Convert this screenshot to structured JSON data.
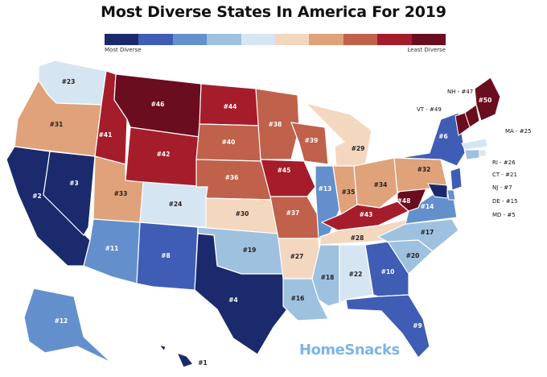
{
  "title": "Most Diverse States In America For 2019",
  "legend": {
    "most_label": "Most Diverse",
    "least_label": "Least Diverse",
    "colors": [
      "#1a2a6c",
      "#3f5db5",
      "#6390cc",
      "#9ec1e0",
      "#d6e5f2",
      "#f4d7bf",
      "#dfa27a",
      "#c0614b",
      "#a51d2b",
      "#6a0d1e"
    ]
  },
  "brand": "HomeSnacks",
  "states": [
    {
      "id": "WA",
      "rank": "#23",
      "color": "#d6e5f2"
    },
    {
      "id": "OR",
      "rank": "#31",
      "color": "#dfa27a"
    },
    {
      "id": "CA",
      "rank": "#2",
      "color": "#1a2a6c"
    },
    {
      "id": "NV",
      "rank": "#3",
      "color": "#1a2a6c"
    },
    {
      "id": "ID",
      "rank": "#41",
      "color": "#a51d2b"
    },
    {
      "id": "MT",
      "rank": "#46",
      "color": "#6a0d1e"
    },
    {
      "id": "WY",
      "rank": "#42",
      "color": "#a51d2b"
    },
    {
      "id": "UT",
      "rank": "#33",
      "color": "#dfa27a"
    },
    {
      "id": "AZ",
      "rank": "#11",
      "color": "#6390cc"
    },
    {
      "id": "CO",
      "rank": "#24",
      "color": "#d6e5f2"
    },
    {
      "id": "NM",
      "rank": "#8",
      "color": "#3f5db5"
    },
    {
      "id": "ND",
      "rank": "#44",
      "color": "#a51d2b"
    },
    {
      "id": "SD",
      "rank": "#40",
      "color": "#c0614b"
    },
    {
      "id": "NE",
      "rank": "#36",
      "color": "#c0614b"
    },
    {
      "id": "KS",
      "rank": "#30",
      "color": "#f4d7bf"
    },
    {
      "id": "OK",
      "rank": "#19",
      "color": "#9ec1e0"
    },
    {
      "id": "TX",
      "rank": "#4",
      "color": "#1a2a6c"
    },
    {
      "id": "MN",
      "rank": "#38",
      "color": "#c0614b"
    },
    {
      "id": "IA",
      "rank": "#45",
      "color": "#a51d2b"
    },
    {
      "id": "MO",
      "rank": "#37",
      "color": "#c0614b"
    },
    {
      "id": "AR",
      "rank": "#27",
      "color": "#f4d7bf"
    },
    {
      "id": "LA",
      "rank": "#16",
      "color": "#9ec1e0"
    },
    {
      "id": "WI",
      "rank": "#39",
      "color": "#c0614b"
    },
    {
      "id": "IL",
      "rank": "#13",
      "color": "#6390cc"
    },
    {
      "id": "MI",
      "rank": "#29",
      "color": "#f4d7bf"
    },
    {
      "id": "IN",
      "rank": "#35",
      "color": "#dfa27a"
    },
    {
      "id": "OH",
      "rank": "#34",
      "color": "#dfa27a"
    },
    {
      "id": "KY",
      "rank": "#43",
      "color": "#a51d2b"
    },
    {
      "id": "TN",
      "rank": "#28",
      "color": "#f4d7bf"
    },
    {
      "id": "MS",
      "rank": "#18",
      "color": "#9ec1e0"
    },
    {
      "id": "AL",
      "rank": "#22",
      "color": "#d6e5f2"
    },
    {
      "id": "GA",
      "rank": "#10",
      "color": "#3f5db5"
    },
    {
      "id": "FL",
      "rank": "#9",
      "color": "#3f5db5"
    },
    {
      "id": "SC",
      "rank": "#20",
      "color": "#9ec1e0"
    },
    {
      "id": "NC",
      "rank": "#17",
      "color": "#9ec1e0"
    },
    {
      "id": "VA",
      "rank": "#14",
      "color": "#6390cc"
    },
    {
      "id": "WV",
      "rank": "#48",
      "color": "#6a0d1e"
    },
    {
      "id": "PA",
      "rank": "#32",
      "color": "#dfa27a"
    },
    {
      "id": "NY",
      "rank": "#6",
      "color": "#3f5db5"
    },
    {
      "id": "ME",
      "rank": "#50",
      "color": "#6a0d1e"
    },
    {
      "id": "AK",
      "rank": "#12",
      "color": "#6390cc"
    },
    {
      "id": "HI",
      "rank": "#1",
      "color": "#1a2a6c"
    }
  ],
  "side_labels": [
    {
      "id": "NH",
      "text": "NH - #47",
      "color": "#6a0d1e"
    },
    {
      "id": "VT",
      "text": "VT - #49",
      "color": "#6a0d1e"
    },
    {
      "id": "MA",
      "text": "MA - #25",
      "color": "#d6e5f2"
    },
    {
      "id": "RI",
      "text": "RI - #26",
      "color": "#d6e5f2"
    },
    {
      "id": "CT",
      "text": "CT - #21",
      "color": "#9ec1e0"
    },
    {
      "id": "NJ",
      "text": "NJ - #7",
      "color": "#3f5db5"
    },
    {
      "id": "DE",
      "text": "DE - #15",
      "color": "#6390cc"
    },
    {
      "id": "MD",
      "text": "MD - #5",
      "color": "#1a2a6c"
    }
  ]
}
